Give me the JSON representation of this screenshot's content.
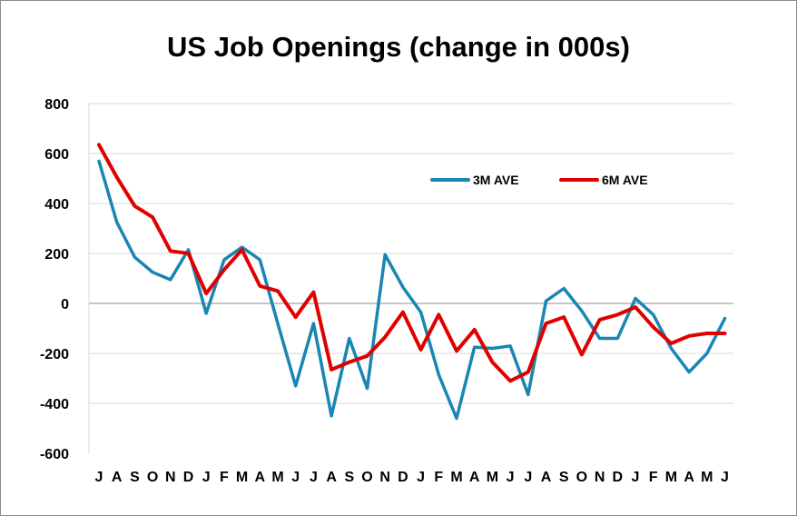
{
  "chart_data": {
    "type": "line",
    "title": "US Job Openings (change in 000s)",
    "xlabel": "",
    "ylabel": "",
    "ylim": [
      -600,
      800
    ],
    "yticks": [
      800,
      600,
      400,
      200,
      0,
      -200,
      -400,
      -600
    ],
    "grid": "horizontal",
    "legend": "top-right",
    "categories": [
      "J",
      "A",
      "S",
      "O",
      "N",
      "D",
      "J",
      "F",
      "M",
      "A",
      "M",
      "J",
      "J",
      "A",
      "S",
      "O",
      "N",
      "D",
      "J",
      "F",
      "M",
      "A",
      "M",
      "J",
      "J",
      "A",
      "S",
      "O",
      "N",
      "D",
      "J",
      "F",
      "M",
      "A",
      "M",
      "J"
    ],
    "series": [
      {
        "name": "3M AVE",
        "color": "#1a86b4",
        "values": [
          570,
          325,
          185,
          125,
          95,
          215,
          -40,
          175,
          225,
          175,
          -80,
          -330,
          -80,
          -450,
          -140,
          -340,
          195,
          65,
          -35,
          -285,
          -460,
          -175,
          -180,
          -170,
          -365,
          10,
          60,
          -30,
          -140,
          -140,
          20,
          -45,
          -180,
          -275,
          -200,
          -60
        ]
      },
      {
        "name": "6M AVE",
        "color": "#e00000",
        "values": [
          635,
          505,
          390,
          345,
          210,
          200,
          40,
          135,
          215,
          70,
          50,
          -55,
          45,
          -265,
          -235,
          -210,
          -135,
          -35,
          -185,
          -45,
          -190,
          -105,
          -235,
          -310,
          -275,
          -80,
          -55,
          -205,
          -65,
          -45,
          -15,
          -95,
          -160,
          -130,
          -120,
          -120
        ]
      }
    ]
  }
}
